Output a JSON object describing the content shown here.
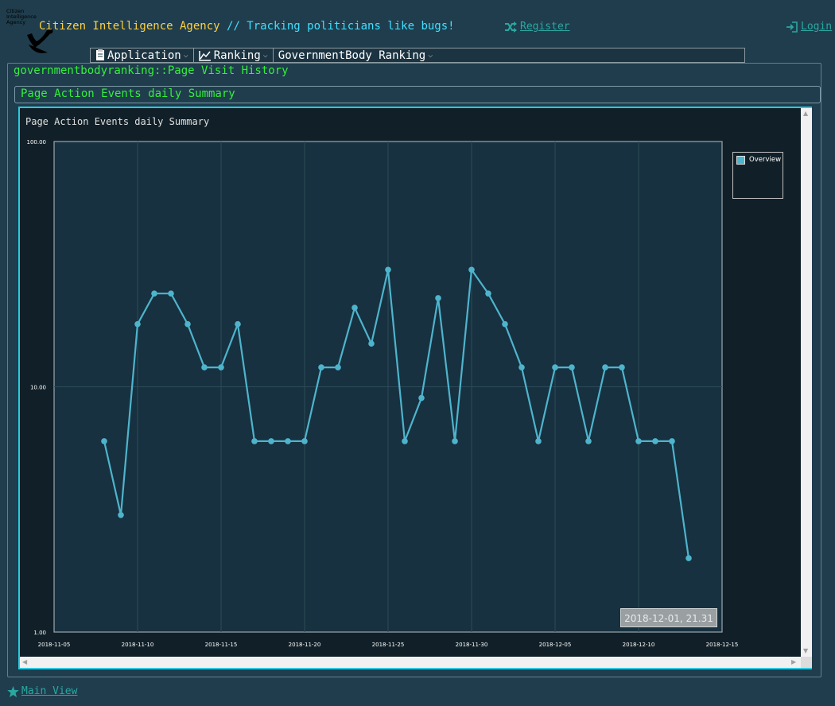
{
  "header": {
    "logo_text": "Citizen Intelligence Agency",
    "title_prefix": "Citizen Intelligence Agency",
    "title_suffix": "// Tracking politicians like bugs!",
    "register_label": "Register",
    "login_label": "Login",
    "register_icon": "shuffle-icon",
    "login_icon": "sign-in-icon"
  },
  "menu": {
    "items": [
      {
        "label": "Application",
        "icon": "file-icon"
      },
      {
        "label": "Ranking",
        "icon": "line-chart-icon"
      },
      {
        "label": "GovernmentBody Ranking",
        "icon": ""
      }
    ]
  },
  "page": {
    "heading": "governmentbodyranking::Page Visit History",
    "subheading": "Page Action Events daily Summary"
  },
  "chart_data": {
    "type": "line",
    "title": "Page Action Events daily Summary",
    "xlabel": "",
    "ylabel": "",
    "y_scale": "log",
    "ylim": [
      1,
      100
    ],
    "y_ticks": [
      "1.00",
      "10.00",
      "100.00"
    ],
    "x_ticks": [
      "2018-11-05",
      "2018-11-10",
      "2018-11-15",
      "2018-11-20",
      "2018-11-25",
      "2018-11-30",
      "2018-12-05",
      "2018-12-10",
      "2018-12-15"
    ],
    "xlim": [
      "2018-11-05",
      "2018-12-15"
    ],
    "grid": true,
    "legend_position": "top-right",
    "series": [
      {
        "name": "Overview",
        "color": "#4eb4cc",
        "points": [
          {
            "x": "2018-11-08",
            "y": 6
          },
          {
            "x": "2018-11-09",
            "y": 3
          },
          {
            "x": "2018-11-10",
            "y": 18
          },
          {
            "x": "2018-11-11",
            "y": 24
          },
          {
            "x": "2018-11-12",
            "y": 24
          },
          {
            "x": "2018-11-13",
            "y": 18
          },
          {
            "x": "2018-11-14",
            "y": 12
          },
          {
            "x": "2018-11-15",
            "y": 12
          },
          {
            "x": "2018-11-16",
            "y": 18
          },
          {
            "x": "2018-11-17",
            "y": 6
          },
          {
            "x": "2018-11-18",
            "y": 6
          },
          {
            "x": "2018-11-19",
            "y": 6
          },
          {
            "x": "2018-11-20",
            "y": 6
          },
          {
            "x": "2018-11-21",
            "y": 12
          },
          {
            "x": "2018-11-22",
            "y": 12
          },
          {
            "x": "2018-11-23",
            "y": 21
          },
          {
            "x": "2018-11-24",
            "y": 15
          },
          {
            "x": "2018-11-25",
            "y": 30
          },
          {
            "x": "2018-11-26",
            "y": 6
          },
          {
            "x": "2018-11-27",
            "y": 9
          },
          {
            "x": "2018-11-28",
            "y": 23
          },
          {
            "x": "2018-11-29",
            "y": 6
          },
          {
            "x": "2018-11-30",
            "y": 30
          },
          {
            "x": "2018-12-01",
            "y": 24
          },
          {
            "x": "2018-12-02",
            "y": 18
          },
          {
            "x": "2018-12-03",
            "y": 12
          },
          {
            "x": "2018-12-04",
            "y": 6
          },
          {
            "x": "2018-12-05",
            "y": 12
          },
          {
            "x": "2018-12-06",
            "y": 12
          },
          {
            "x": "2018-12-07",
            "y": 6
          },
          {
            "x": "2018-12-08",
            "y": 12
          },
          {
            "x": "2018-12-09",
            "y": 12
          },
          {
            "x": "2018-12-10",
            "y": 6
          },
          {
            "x": "2018-12-11",
            "y": 6
          },
          {
            "x": "2018-12-12",
            "y": 6
          },
          {
            "x": "2018-12-13",
            "y": 2
          }
        ]
      }
    ],
    "tooltip": "2018-12-01, 21.31"
  },
  "footer": {
    "main_view_label": "Main View",
    "main_view_icon": "star-icon"
  }
}
